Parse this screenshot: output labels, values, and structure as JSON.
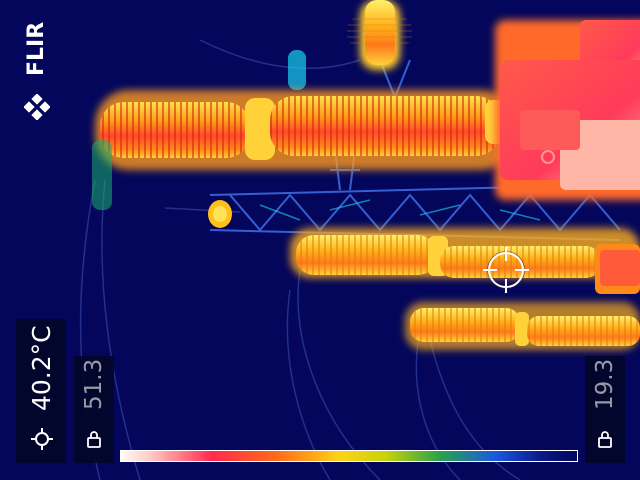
{
  "brand": {
    "logo_text": "FLIR"
  },
  "measurement": {
    "spot_temperature": "40.2°C"
  },
  "scale": {
    "max": "51.3",
    "min": "19.3"
  },
  "icons": {
    "spot": "spotmeter-icon",
    "lock": "lock-icon",
    "crosshair": "crosshair-icon"
  },
  "colors": {
    "background": "#03065a",
    "hot": "#ff2a4a",
    "warm": "#ffd21a",
    "cold": "#03065a"
  }
}
